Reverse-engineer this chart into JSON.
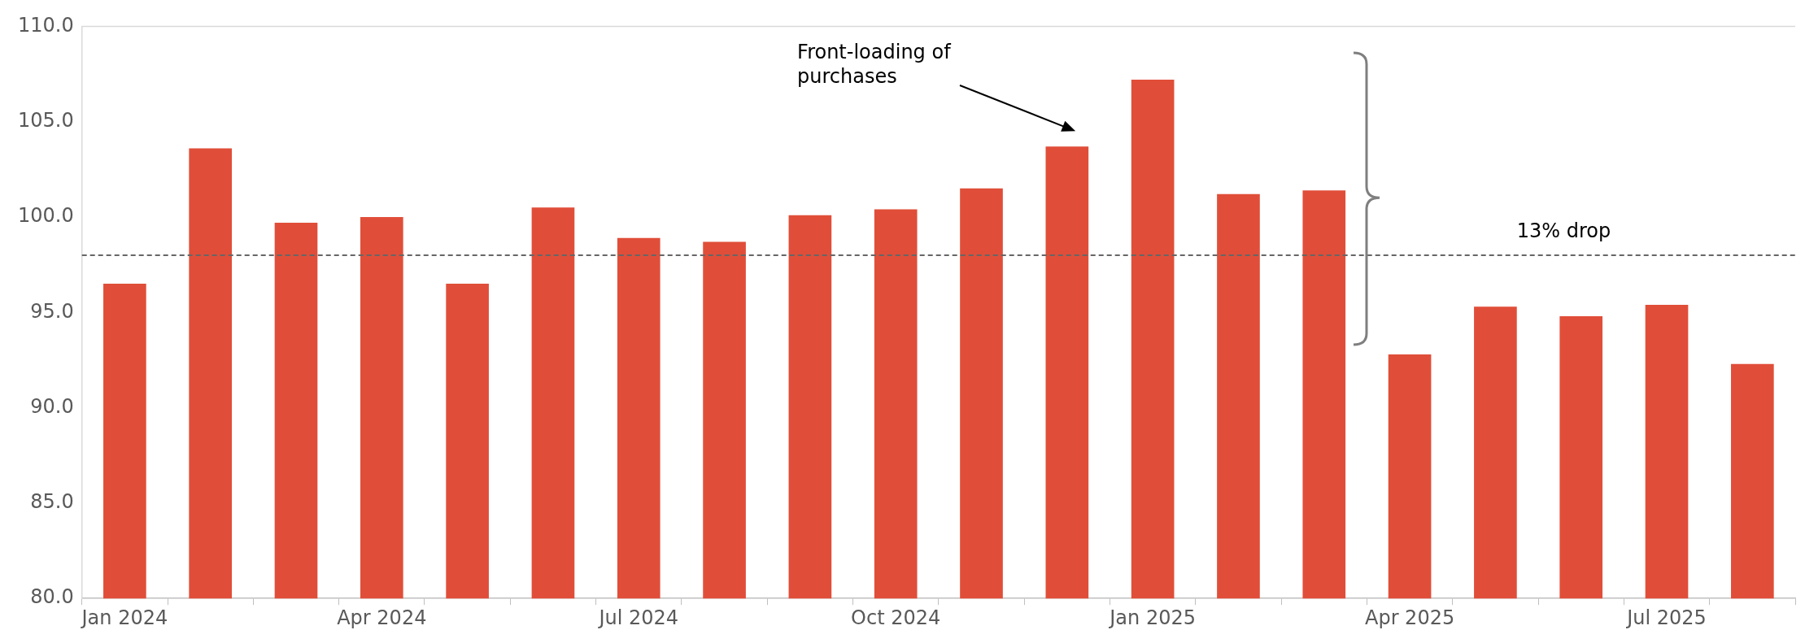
{
  "chart_data": {
    "type": "bar",
    "categories": [
      "Jan 2024",
      null,
      null,
      "Apr 2024",
      null,
      null,
      "Jul 2024",
      null,
      null,
      "Oct 2024",
      null,
      null,
      "Jan 2025",
      null,
      null,
      "Apr 2025",
      null,
      null,
      "Jul 2025",
      null
    ],
    "values": [
      96.5,
      103.6,
      99.7,
      100.0,
      96.5,
      100.5,
      98.9,
      98.7,
      100.1,
      100.4,
      101.5,
      103.7,
      107.2,
      101.2,
      101.4,
      92.8,
      95.3,
      94.8,
      95.4,
      92.3
    ],
    "color": "#e04e39",
    "ylim": [
      80,
      110
    ],
    "yticks": [
      {
        "value": 80,
        "label": "80.0"
      },
      {
        "value": 85,
        "label": "85.0"
      },
      {
        "value": 90,
        "label": "90.0"
      },
      {
        "value": 95,
        "label": "95.0"
      },
      {
        "value": 100,
        "label": "100.0"
      },
      {
        "value": 105,
        "label": "105.0"
      },
      {
        "value": 110,
        "label": "110.0"
      }
    ],
    "grid": false,
    "legend": false,
    "ref_lines": [
      {
        "axis": "y",
        "value": 98,
        "color": "#666666",
        "line_style": "dashed"
      }
    ],
    "annotations": [
      "Front-loading of purchases",
      "13% drop"
    ]
  }
}
